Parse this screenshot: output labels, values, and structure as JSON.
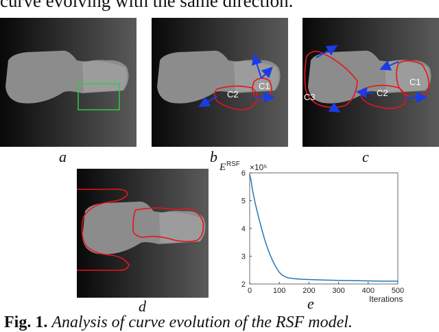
{
  "header": {
    "text": "curve evolving with the same direction."
  },
  "panels": {
    "a": {
      "label": "a"
    },
    "b": {
      "label": "b",
      "contour_labels": [
        "C1",
        "C2"
      ]
    },
    "c": {
      "label": "c",
      "contour_labels": [
        "C1",
        "C2",
        "C3"
      ]
    },
    "d": {
      "label": "d"
    },
    "e": {
      "label": "e"
    }
  },
  "caption": {
    "fig_label": "Fig. 1.",
    "text": "Analysis of curve evolution of the RSF model."
  },
  "colors": {
    "contour": "#e8141c",
    "arrow": "#1a3ce6",
    "box": "#2ecc40",
    "series": "#1f77b4"
  },
  "chart_data": {
    "type": "line",
    "ylabel": "E",
    "ylabel_sup": "RSF",
    "exponent": "×10⁵",
    "xlabel": "Iterations",
    "xlim": [
      0,
      500
    ],
    "ylim": [
      2,
      6
    ],
    "xticks": [
      0,
      100,
      200,
      300,
      400,
      500
    ],
    "yticks": [
      2,
      3,
      4,
      5,
      6
    ],
    "grid": false,
    "series": [
      {
        "x": [
          0,
          5,
          10,
          20,
          30,
          40,
          50,
          60,
          70,
          80,
          90,
          100,
          110,
          120,
          130,
          150,
          175,
          200,
          250,
          300,
          350,
          400,
          450,
          500
        ],
        "values": [
          5.95,
          5.7,
          5.35,
          4.85,
          4.4,
          4.0,
          3.62,
          3.3,
          3.02,
          2.78,
          2.58,
          2.42,
          2.32,
          2.26,
          2.22,
          2.19,
          2.17,
          2.16,
          2.14,
          2.13,
          2.12,
          2.11,
          2.1,
          2.1
        ]
      }
    ]
  }
}
